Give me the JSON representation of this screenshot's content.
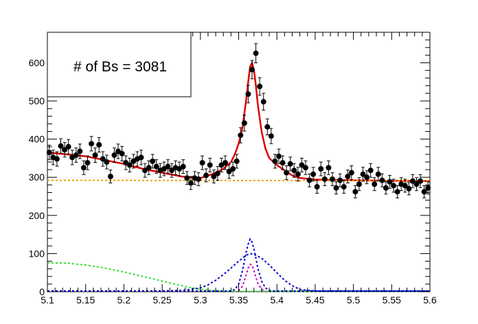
{
  "colors": {
    "data_points": "#000000",
    "total_fit": "#e00000",
    "flat_background": "#f0a000",
    "left_sideband": "#33dd33",
    "wide_gaussian": "#0000d0",
    "narrow_gaussian": "#0000d0",
    "peak_gaussian": "#cc00cc"
  },
  "stats_box": {
    "text": "# of Bs = 3081"
  },
  "chart_data": {
    "type": "scatter",
    "title": "",
    "xlabel": "",
    "ylabel": "",
    "xlim": [
      5.1,
      5.6
    ],
    "ylim": [
      0,
      680
    ],
    "grid": false,
    "x_ticks": [
      "5.1",
      "5.15",
      "5.2",
      "5.25",
      "5.3",
      "5.35",
      "5.4",
      "5.45",
      "5.5",
      "5.55",
      "5.6"
    ],
    "y_ticks": [
      "0",
      "100",
      "200",
      "300",
      "400",
      "500",
      "600"
    ],
    "data": {
      "name": "",
      "points": [
        [
          5.1025,
          365,
          19
        ],
        [
          5.1075,
          352,
          19
        ],
        [
          5.1125,
          348,
          19
        ],
        [
          5.1175,
          382,
          19
        ],
        [
          5.1225,
          372,
          19
        ],
        [
          5.1275,
          380,
          19
        ],
        [
          5.1325,
          352,
          19
        ],
        [
          5.1375,
          358,
          19
        ],
        [
          5.1425,
          368,
          19
        ],
        [
          5.1475,
          325,
          18
        ],
        [
          5.1525,
          338,
          18
        ],
        [
          5.1575,
          388,
          19
        ],
        [
          5.1625,
          358,
          19
        ],
        [
          5.1675,
          385,
          19
        ],
        [
          5.1725,
          348,
          19
        ],
        [
          5.1775,
          340,
          18
        ],
        [
          5.1825,
          302,
          17
        ],
        [
          5.1875,
          358,
          19
        ],
        [
          5.1925,
          368,
          19
        ],
        [
          5.1975,
          362,
          19
        ],
        [
          5.2025,
          338,
          18
        ],
        [
          5.2075,
          332,
          18
        ],
        [
          5.2125,
          342,
          18
        ],
        [
          5.2175,
          348,
          19
        ],
        [
          5.2225,
          352,
          19
        ],
        [
          5.2275,
          318,
          18
        ],
        [
          5.2325,
          325,
          18
        ],
        [
          5.2375,
          342,
          18
        ],
        [
          5.2425,
          328,
          18
        ],
        [
          5.2475,
          318,
          18
        ],
        [
          5.2525,
          322,
          18
        ],
        [
          5.2575,
          328,
          18
        ],
        [
          5.2625,
          318,
          18
        ],
        [
          5.2675,
          325,
          18
        ],
        [
          5.2725,
          322,
          18
        ],
        [
          5.2775,
          328,
          18
        ],
        [
          5.2825,
          298,
          17
        ],
        [
          5.2875,
          285,
          17
        ],
        [
          5.2925,
          298,
          17
        ],
        [
          5.2975,
          295,
          17
        ],
        [
          5.3025,
          338,
          18
        ],
        [
          5.3075,
          305,
          17
        ],
        [
          5.3125,
          332,
          18
        ],
        [
          5.3175,
          302,
          17
        ],
        [
          5.3225,
          310,
          18
        ],
        [
          5.3275,
          332,
          18
        ],
        [
          5.3325,
          338,
          18
        ],
        [
          5.3375,
          315,
          18
        ],
        [
          5.3425,
          322,
          18
        ],
        [
          5.3475,
          342,
          18
        ],
        [
          5.3525,
          410,
          20
        ],
        [
          5.3575,
          442,
          21
        ],
        [
          5.3625,
          518,
          23
        ],
        [
          5.3675,
          582,
          24
        ],
        [
          5.3725,
          625,
          25
        ],
        [
          5.3775,
          538,
          23
        ],
        [
          5.3825,
          498,
          22
        ],
        [
          5.3875,
          432,
          21
        ],
        [
          5.3925,
          408,
          20
        ],
        [
          5.3975,
          342,
          18
        ],
        [
          5.4025,
          355,
          19
        ],
        [
          5.4075,
          338,
          18
        ],
        [
          5.4125,
          312,
          18
        ],
        [
          5.4175,
          335,
          18
        ],
        [
          5.4225,
          318,
          18
        ],
        [
          5.4275,
          308,
          18
        ],
        [
          5.4325,
          332,
          18
        ],
        [
          5.4375,
          325,
          18
        ],
        [
          5.4425,
          292,
          17
        ],
        [
          5.4475,
          308,
          18
        ],
        [
          5.4525,
          275,
          17
        ],
        [
          5.4575,
          322,
          18
        ],
        [
          5.4625,
          295,
          17
        ],
        [
          5.4675,
          325,
          18
        ],
        [
          5.4725,
          295,
          17
        ],
        [
          5.4775,
          272,
          16
        ],
        [
          5.4825,
          292,
          17
        ],
        [
          5.4875,
          275,
          17
        ],
        [
          5.4925,
          302,
          17
        ],
        [
          5.4975,
          312,
          18
        ],
        [
          5.5025,
          262,
          16
        ],
        [
          5.5075,
          282,
          17
        ],
        [
          5.5125,
          308,
          18
        ],
        [
          5.5175,
          300,
          17
        ],
        [
          5.5225,
          318,
          18
        ],
        [
          5.5275,
          282,
          17
        ],
        [
          5.5325,
          308,
          18
        ],
        [
          5.5375,
          292,
          17
        ],
        [
          5.5425,
          272,
          16
        ],
        [
          5.5475,
          288,
          17
        ],
        [
          5.5525,
          278,
          17
        ],
        [
          5.5575,
          262,
          16
        ],
        [
          5.5625,
          282,
          17
        ],
        [
          5.5675,
          278,
          17
        ],
        [
          5.5725,
          270,
          16
        ],
        [
          5.5775,
          290,
          17
        ],
        [
          5.5825,
          282,
          17
        ],
        [
          5.5875,
          290,
          17
        ],
        [
          5.5925,
          262,
          16
        ],
        [
          5.5975,
          272,
          16
        ]
      ]
    },
    "curves": [
      {
        "name": "",
        "color_key": "total_fit",
        "style": "solid",
        "x": [
          5.1,
          5.125,
          5.15,
          5.175,
          5.2,
          5.225,
          5.25,
          5.275,
          5.3,
          5.31,
          5.32,
          5.33,
          5.34,
          5.345,
          5.35,
          5.355,
          5.36,
          5.3625,
          5.365,
          5.3675,
          5.37,
          5.3725,
          5.375,
          5.38,
          5.385,
          5.39,
          5.4,
          5.41,
          5.42,
          5.43,
          5.45,
          5.5,
          5.55,
          5.6
        ],
        "y": [
          365,
          360,
          355,
          345,
          335,
          322,
          312,
          302,
          298,
          304,
          312,
          322,
          340,
          360,
          388,
          430,
          505,
          550,
          590,
          600,
          580,
          540,
          490,
          420,
          375,
          350,
          332,
          318,
          305,
          298,
          294,
          292,
          291,
          290
        ]
      },
      {
        "name": "",
        "color_key": "flat_background",
        "style": "dashed",
        "x": [
          5.1,
          5.6
        ],
        "y": [
          292,
          291
        ]
      },
      {
        "name": "",
        "color_key": "left_sideband",
        "style": "dashed",
        "x": [
          5.1,
          5.125,
          5.15,
          5.175,
          5.2,
          5.225,
          5.25,
          5.275,
          5.3,
          5.325,
          5.35,
          5.4,
          5.45,
          5.5,
          5.55,
          5.6
        ],
        "y": [
          76,
          75,
          70,
          62,
          52,
          40,
          28,
          16,
          6,
          2,
          1,
          1,
          1,
          1,
          1,
          1
        ]
      },
      {
        "name": "",
        "color_key": "wide_gaussian",
        "style": "dashed",
        "x": [
          5.1,
          5.25,
          5.28,
          5.3,
          5.31,
          5.32,
          5.33,
          5.34,
          5.35,
          5.36,
          5.365,
          5.37,
          5.38,
          5.39,
          5.4,
          5.41,
          5.42,
          5.43,
          5.45,
          5.6
        ],
        "y": [
          2,
          2,
          4,
          10,
          18,
          30,
          45,
          62,
          80,
          96,
          100,
          98,
          88,
          70,
          50,
          30,
          16,
          6,
          2,
          2
        ]
      },
      {
        "name": "",
        "color_key": "narrow_gaussian",
        "style": "dashed",
        "x": [
          5.1,
          5.34,
          5.345,
          5.35,
          5.355,
          5.36,
          5.3625,
          5.365,
          5.3675,
          5.37,
          5.3725,
          5.375,
          5.38,
          5.385,
          5.39,
          5.395,
          5.6
        ],
        "y": [
          2,
          2,
          6,
          20,
          55,
          105,
          125,
          138,
          130,
          112,
          88,
          62,
          28,
          10,
          3,
          2,
          2
        ]
      },
      {
        "name": "",
        "color_key": "peak_gaussian",
        "style": "dashed",
        "x": [
          5.35,
          5.355,
          5.36,
          5.3625,
          5.365,
          5.3675,
          5.37,
          5.3725,
          5.375,
          5.38,
          5.385
        ],
        "y": [
          2,
          15,
          45,
          62,
          72,
          70,
          55,
          38,
          22,
          6,
          2
        ]
      }
    ]
  }
}
